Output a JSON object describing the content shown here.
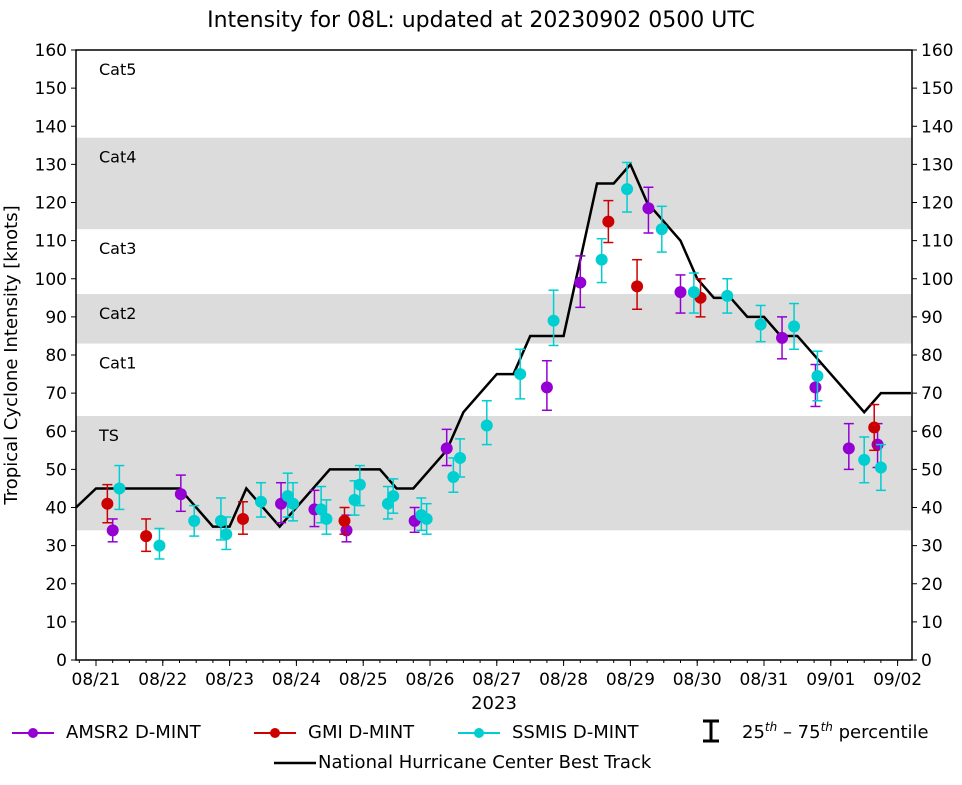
{
  "chart_data": {
    "type": "scatter",
    "title": "Intensity for 08L: updated at 20230902 0500 UTC",
    "xlabel": "2023",
    "ylabel": "Tropical Cyclone Intensity [knots]",
    "ylim": [
      0,
      160
    ],
    "yticks": [
      0,
      10,
      20,
      30,
      40,
      50,
      60,
      70,
      80,
      90,
      100,
      110,
      120,
      130,
      140,
      150,
      160
    ],
    "x_unit": "days since 08/21 00Z",
    "xlim": [
      -0.3,
      12.2
    ],
    "xtick_labels": [
      "08/21",
      "08/22",
      "08/23",
      "08/24",
      "08/25",
      "08/26",
      "08/27",
      "08/28",
      "08/29",
      "08/30",
      "08/31",
      "09/01",
      "09/02"
    ],
    "grid": false,
    "bands": [
      {
        "label": "TS",
        "from": 34,
        "to": 64,
        "shaded": true
      },
      {
        "label": "Cat1",
        "from": 64,
        "to": 83,
        "shaded": false
      },
      {
        "label": "Cat2",
        "from": 83,
        "to": 96,
        "shaded": true
      },
      {
        "label": "Cat3",
        "from": 96,
        "to": 113,
        "shaded": false
      },
      {
        "label": "Cat4",
        "from": 113,
        "to": 137,
        "shaded": true
      },
      {
        "label": "Cat5",
        "from": 137,
        "to": 160,
        "shaded": false
      }
    ],
    "best_track": {
      "name": "National Hurricane Center Best Track",
      "color": "#000000",
      "x": [
        -0.3,
        0,
        1.25,
        1.75,
        2.0,
        2.25,
        2.75,
        3.5,
        4.25,
        4.5,
        4.75,
        5.25,
        5.5,
        6.0,
        6.25,
        6.5,
        7.0,
        7.5,
        7.75,
        8.0,
        8.25,
        8.75,
        9.0,
        9.25,
        9.5,
        9.75,
        10.0,
        10.25,
        10.5,
        11.5,
        11.75,
        12.2
      ],
      "y": [
        40,
        45,
        45,
        35,
        35,
        45,
        35,
        50,
        50,
        45,
        45,
        55,
        65,
        75,
        75,
        85,
        85,
        125,
        125,
        130,
        120,
        110,
        100,
        95,
        95,
        90,
        90,
        85,
        85,
        65,
        70,
        70
      ]
    },
    "series": [
      {
        "name": "AMSR2 D-MINT",
        "color": "#9400D3",
        "points": [
          {
            "x": 0.25,
            "y": 34,
            "lo": 31,
            "hi": 37
          },
          {
            "x": 1.27,
            "y": 43.5,
            "lo": 39,
            "hi": 48.5
          },
          {
            "x": 2.77,
            "y": 41,
            "lo": 36,
            "hi": 46.5
          },
          {
            "x": 3.27,
            "y": 39.5,
            "lo": 35,
            "hi": 44.5
          },
          {
            "x": 3.75,
            "y": 34,
            "lo": 31,
            "hi": 38
          },
          {
            "x": 4.77,
            "y": 36.5,
            "lo": 33.5,
            "hi": 40
          },
          {
            "x": 5.25,
            "y": 55.5,
            "lo": 51,
            "hi": 60.5
          },
          {
            "x": 6.75,
            "y": 71.5,
            "lo": 65.5,
            "hi": 78.5
          },
          {
            "x": 7.25,
            "y": 99,
            "lo": 92.5,
            "hi": 106
          },
          {
            "x": 8.27,
            "y": 118.5,
            "lo": 112,
            "hi": 124
          },
          {
            "x": 8.75,
            "y": 96.5,
            "lo": 91,
            "hi": 101
          },
          {
            "x": 10.27,
            "y": 84.5,
            "lo": 79,
            "hi": 90
          },
          {
            "x": 10.77,
            "y": 71.5,
            "lo": 66.5,
            "hi": 77.5
          },
          {
            "x": 11.27,
            "y": 55.5,
            "lo": 50,
            "hi": 62
          },
          {
            "x": 11.7,
            "y": 56.5,
            "lo": 50.5,
            "hi": 62
          }
        ]
      },
      {
        "name": "GMI D-MINT",
        "color": "#CC0000",
        "points": [
          {
            "x": 0.17,
            "y": 41,
            "lo": 36,
            "hi": 46
          },
          {
            "x": 0.75,
            "y": 32.5,
            "lo": 28.5,
            "hi": 37
          },
          {
            "x": 2.2,
            "y": 37,
            "lo": 33,
            "hi": 41.5
          },
          {
            "x": 3.72,
            "y": 36.5,
            "lo": 33,
            "hi": 40
          },
          {
            "x": 7.67,
            "y": 115,
            "lo": 109.5,
            "hi": 120.5
          },
          {
            "x": 8.1,
            "y": 98,
            "lo": 92,
            "hi": 105
          },
          {
            "x": 9.05,
            "y": 95,
            "lo": 90,
            "hi": 100
          },
          {
            "x": 11.65,
            "y": 61,
            "lo": 55,
            "hi": 67
          }
        ]
      },
      {
        "name": "SSMIS D-MINT",
        "color": "#00CED1",
        "points": [
          {
            "x": 0.35,
            "y": 45,
            "lo": 39.5,
            "hi": 51
          },
          {
            "x": 0.95,
            "y": 30,
            "lo": 26.5,
            "hi": 34.5
          },
          {
            "x": 1.47,
            "y": 36.5,
            "lo": 32.5,
            "hi": 40.5
          },
          {
            "x": 1.87,
            "y": 36.5,
            "lo": 31.5,
            "hi": 42.5
          },
          {
            "x": 1.95,
            "y": 33,
            "lo": 29,
            "hi": 37.5
          },
          {
            "x": 2.47,
            "y": 41.5,
            "lo": 37.5,
            "hi": 46.5
          },
          {
            "x": 2.87,
            "y": 43,
            "lo": 37.5,
            "hi": 49
          },
          {
            "x": 2.95,
            "y": 41,
            "lo": 36.5,
            "hi": 46.5
          },
          {
            "x": 3.37,
            "y": 39.5,
            "lo": 36,
            "hi": 45.5
          },
          {
            "x": 3.45,
            "y": 37,
            "lo": 33,
            "hi": 42
          },
          {
            "x": 3.87,
            "y": 42,
            "lo": 38,
            "hi": 47
          },
          {
            "x": 3.95,
            "y": 46,
            "lo": 40.5,
            "hi": 51
          },
          {
            "x": 4.37,
            "y": 41,
            "lo": 37,
            "hi": 45.5
          },
          {
            "x": 4.45,
            "y": 43,
            "lo": 38.5,
            "hi": 47.5
          },
          {
            "x": 4.87,
            "y": 38,
            "lo": 34,
            "hi": 42.5
          },
          {
            "x": 4.95,
            "y": 37,
            "lo": 33,
            "hi": 41
          },
          {
            "x": 5.35,
            "y": 48,
            "lo": 44,
            "hi": 53
          },
          {
            "x": 5.45,
            "y": 53,
            "lo": 48,
            "hi": 58
          },
          {
            "x": 5.85,
            "y": 61.5,
            "lo": 56.5,
            "hi": 68
          },
          {
            "x": 6.35,
            "y": 75,
            "lo": 68.5,
            "hi": 81.5
          },
          {
            "x": 6.85,
            "y": 89,
            "lo": 82.5,
            "hi": 97
          },
          {
            "x": 7.57,
            "y": 105,
            "lo": 99,
            "hi": 110.5
          },
          {
            "x": 7.95,
            "y": 123.5,
            "lo": 117.5,
            "hi": 130.5
          },
          {
            "x": 8.47,
            "y": 113,
            "lo": 107,
            "hi": 119
          },
          {
            "x": 8.95,
            "y": 96.5,
            "lo": 91,
            "hi": 101.5
          },
          {
            "x": 9.45,
            "y": 95.5,
            "lo": 91,
            "hi": 100
          },
          {
            "x": 9.95,
            "y": 88,
            "lo": 83.5,
            "hi": 93
          },
          {
            "x": 10.45,
            "y": 87.5,
            "lo": 81.5,
            "hi": 93.5
          },
          {
            "x": 10.8,
            "y": 74.5,
            "lo": 68,
            "hi": 81
          },
          {
            "x": 11.5,
            "y": 52.5,
            "lo": 46.5,
            "hi": 58.5
          },
          {
            "x": 11.75,
            "y": 50.5,
            "lo": 44.5,
            "hi": 56.5
          }
        ]
      }
    ],
    "legend": {
      "placement": "bottom",
      "entries": [
        "AMSR2 D-MINT",
        "GMI D-MINT",
        "SSMIS D-MINT",
        "25th – 75th percentile",
        "National Hurricane Center Best Track"
      ]
    }
  },
  "legend_labels": {
    "amsr2": "AMSR2 D-MINT",
    "gmi": "GMI D-MINT",
    "ssmis": "SSMIS D-MINT",
    "pct_25": "25",
    "pct_th1": "th",
    "pct_dash": " – 75",
    "pct_th2": "th",
    "pct_word": " percentile",
    "best_track": "National Hurricane Center Best Track"
  },
  "colors": {
    "band_fill": "#DCDCDC",
    "amsr2": "#9400D3",
    "gmi": "#CC0000",
    "ssmis": "#00CED1"
  }
}
